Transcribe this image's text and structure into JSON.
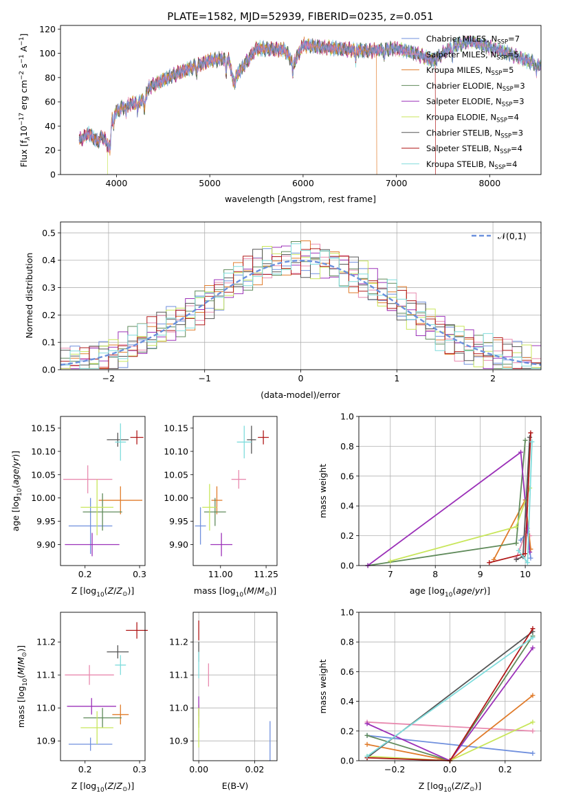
{
  "figure": {
    "title": "PLATE=1582, MJD=52939, FIBERID=0235, z=0.051"
  },
  "models": [
    {
      "name": "Chabrier MILES",
      "nssp": "7",
      "color": "#6f8fdd"
    },
    {
      "name": "Salpeter MILES",
      "nssp": "5",
      "color": "#e88aaf"
    },
    {
      "name": "Kroupa MILES",
      "nssp": "5",
      "color": "#e07b2a"
    },
    {
      "name": "Chabrier ELODIE",
      "nssp": "3",
      "color": "#5f8a5a"
    },
    {
      "name": "Salpeter ELODIE",
      "nssp": "3",
      "color": "#9b30b8"
    },
    {
      "name": "Kroupa ELODIE",
      "nssp": "4",
      "color": "#c8e65a"
    },
    {
      "name": "Chabrier STELIB",
      "nssp": "3",
      "color": "#555555"
    },
    {
      "name": "Salpeter STELIB",
      "nssp": "4",
      "color": "#b01818"
    },
    {
      "name": "Kroupa STELIB",
      "nssp": "4",
      "color": "#7fdcdc"
    }
  ],
  "chart_data": [
    {
      "id": "spectrum",
      "type": "line",
      "xlabel": "wavelength [Angstrom, rest frame]",
      "ylabel": "Flux [f_λ10^-17 erg cm^-2 s^-1 A^-1]",
      "xlim": [
        3400,
        8550
      ],
      "ylim": [
        0,
        123
      ],
      "xticks": [
        4000,
        5000,
        6000,
        7000,
        8000
      ],
      "yticks": [
        0,
        20,
        40,
        60,
        80,
        100,
        120
      ],
      "legend": "right",
      "grid": false,
      "continuum": {
        "x": [
          3600,
          3700,
          3800,
          3850,
          3920,
          3950,
          4000,
          4100,
          4200,
          4300,
          4350,
          4500,
          4700,
          5000,
          5200,
          5250,
          5500,
          5800,
          5900,
          6000,
          6200,
          6500,
          6700,
          7000,
          7200,
          7400,
          7600,
          7800,
          8000,
          8200,
          8400,
          8550
        ],
        "y": [
          28,
          34,
          27,
          32,
          22,
          45,
          52,
          57,
          59,
          62,
          72,
          78,
          85,
          94,
          96,
          78,
          104,
          103,
          92,
          107,
          105,
          103,
          102,
          104,
          100,
          94,
          106,
          110,
          105,
          100,
          94,
          90
        ]
      },
      "drops": [
        {
          "model": "Kroupa ELODIE",
          "x": 3905
        },
        {
          "model": "Kroupa MILES",
          "x": 6790
        },
        {
          "model": "Salpeter STELIB",
          "x": 7420
        }
      ]
    },
    {
      "id": "residuals",
      "type": "step",
      "xlabel": "(data-model)/error",
      "ylabel": "Normed distribution",
      "xlim": [
        -2.5,
        2.5
      ],
      "ylim": [
        0,
        0.54
      ],
      "xticks": [
        -2,
        -1,
        0,
        1,
        2
      ],
      "yticks": [
        0.0,
        0.1,
        0.2,
        0.3,
        0.4,
        0.5
      ],
      "grid": true,
      "legend": "top-right",
      "reference": {
        "name": "𝒩(0,1)",
        "mu": 0,
        "sigma": 1,
        "color": "#6a90dd"
      },
      "bins": 50
    },
    {
      "id": "age-vs-Z",
      "type": "errorbar",
      "xlabel": "Z [log10(Z/Z⊙)]",
      "ylabel": "age  [log10(age/yr)]",
      "xlim": [
        0.155,
        0.31
      ],
      "ylim": [
        9.855,
        10.175
      ],
      "xticks": [
        0.2,
        0.3
      ],
      "yticks": [
        9.9,
        9.95,
        10.0,
        10.05,
        10.1,
        10.15
      ],
      "points": [
        {
          "model": "Chabrier MILES",
          "x": 0.21,
          "y": 9.94,
          "xerr": 0.04,
          "yerr": 0.06
        },
        {
          "model": "Salpeter MILES",
          "x": 0.205,
          "y": 10.04,
          "xerr": 0.045,
          "yerr": 0.03
        },
        {
          "model": "Kroupa MILES",
          "x": 0.265,
          "y": 9.995,
          "xerr": 0.04,
          "yerr": 0.03
        },
        {
          "model": "Chabrier ELODIE",
          "x": 0.232,
          "y": 9.97,
          "xerr": 0.036,
          "yerr": 0.04
        },
        {
          "model": "Salpeter ELODIE",
          "x": 0.213,
          "y": 9.9,
          "xerr": 0.05,
          "yerr": 0.025
        },
        {
          "model": "Kroupa ELODIE",
          "x": 0.222,
          "y": 9.98,
          "xerr": 0.03,
          "yerr": 0.06
        },
        {
          "model": "Chabrier STELIB",
          "x": 0.26,
          "y": 10.125,
          "xerr": 0.02,
          "yerr": 0.015
        },
        {
          "model": "Salpeter STELIB",
          "x": 0.295,
          "y": 10.13,
          "xerr": 0.012,
          "yerr": 0.015
        },
        {
          "model": "Kroupa STELIB",
          "x": 0.265,
          "y": 10.12,
          "xerr": 0.01,
          "yerr": 0.04
        }
      ]
    },
    {
      "id": "age-vs-mass",
      "type": "errorbar",
      "xlabel": "mass [log10(M/M⊙)]",
      "ylabel": "",
      "xlim": [
        10.85,
        11.31
      ],
      "ylim": [
        9.855,
        10.175
      ],
      "xticks": [
        11.0,
        11.25
      ],
      "yticks": [
        9.9,
        9.95,
        10.0,
        10.05,
        10.1,
        10.15
      ],
      "points": [
        {
          "model": "Chabrier MILES",
          "x": 10.89,
          "y": 9.94,
          "xerr": 0.03,
          "yerr": 0.04
        },
        {
          "model": "Salpeter MILES",
          "x": 11.1,
          "y": 10.04,
          "xerr": 0.04,
          "yerr": 0.02
        },
        {
          "model": "Kroupa MILES",
          "x": 10.98,
          "y": 9.995,
          "xerr": 0.03,
          "yerr": 0.03
        },
        {
          "model": "Chabrier ELODIE",
          "x": 10.97,
          "y": 9.97,
          "xerr": 0.06,
          "yerr": 0.03
        },
        {
          "model": "Salpeter ELODIE",
          "x": 11.005,
          "y": 9.9,
          "xerr": 0.06,
          "yerr": 0.025
        },
        {
          "model": "Kroupa ELODIE",
          "x": 10.94,
          "y": 9.98,
          "xerr": 0.04,
          "yerr": 0.05
        },
        {
          "model": "Chabrier STELIB",
          "x": 11.17,
          "y": 10.125,
          "xerr": 0.025,
          "yerr": 0.03
        },
        {
          "model": "Salpeter STELIB",
          "x": 11.235,
          "y": 10.13,
          "xerr": 0.03,
          "yerr": 0.015
        },
        {
          "model": "Kroupa STELIB",
          "x": 11.13,
          "y": 10.12,
          "xerr": 0.04,
          "yerr": 0.035
        }
      ]
    },
    {
      "id": "weight-vs-age",
      "type": "line",
      "xlabel": "age  [log10(age/yr)]",
      "ylabel": "mass weight",
      "xlim": [
        6.3,
        10.35
      ],
      "ylim": [
        0.0,
        1.0
      ],
      "xticks": [
        7,
        8,
        9,
        10
      ],
      "yticks": [
        0.0,
        0.2,
        0.4,
        0.6,
        0.8,
        1.0
      ],
      "grid": true,
      "series": [
        {
          "model": "Chabrier MILES",
          "x": [
            9.9,
            10.05,
            10.12
          ],
          "y": [
            0.17,
            0.23,
            0.05
          ]
        },
        {
          "model": "Salpeter MILES",
          "x": [
            9.8,
            10.05,
            10.1
          ],
          "y": [
            0.05,
            0.25,
            0.2
          ]
        },
        {
          "model": "Kroupa MILES",
          "x": [
            9.3,
            10.0,
            10.12
          ],
          "y": [
            0.04,
            0.44,
            0.11
          ]
        },
        {
          "model": "Chabrier ELODIE",
          "x": [
            6.5,
            9.8,
            10.0
          ],
          "y": [
            0.0,
            0.15,
            0.84
          ]
        },
        {
          "model": "Salpeter ELODIE",
          "x": [
            6.5,
            9.9,
            10.1
          ],
          "y": [
            0.0,
            0.76,
            0.09
          ]
        },
        {
          "model": "Kroupa ELODIE",
          "x": [
            7.0,
            9.8,
            10.1
          ],
          "y": [
            0.03,
            0.26,
            0.52
          ]
        },
        {
          "model": "Chabrier STELIB",
          "x": [
            9.8,
            9.95,
            10.1
          ],
          "y": [
            0.04,
            0.06,
            0.86
          ]
        },
        {
          "model": "Salpeter STELIB",
          "x": [
            9.2,
            10.0,
            10.12
          ],
          "y": [
            0.02,
            0.08,
            0.89
          ]
        },
        {
          "model": "Kroupa STELIB",
          "x": [
            9.85,
            10.05,
            10.15
          ],
          "y": [
            0.1,
            0.02,
            0.83
          ]
        }
      ]
    },
    {
      "id": "mass-vs-Z",
      "type": "errorbar",
      "xlabel": "Z [log10(Z/Z⊙)]",
      "ylabel": "mass [log10(M/M⊙)]",
      "xlim": [
        0.155,
        0.31
      ],
      "ylim": [
        10.84,
        11.29
      ],
      "xticks": [
        0.2,
        0.3
      ],
      "yticks": [
        10.9,
        11.0,
        11.1,
        11.2
      ],
      "points": [
        {
          "model": "Chabrier MILES",
          "x": 0.21,
          "y": 10.89,
          "xerr": 0.04,
          "yerr": 0.02
        },
        {
          "model": "Salpeter MILES",
          "x": 0.208,
          "y": 11.1,
          "xerr": 0.045,
          "yerr": 0.03
        },
        {
          "model": "Kroupa MILES",
          "x": 0.265,
          "y": 10.98,
          "xerr": 0.015,
          "yerr": 0.03
        },
        {
          "model": "Chabrier ELODIE",
          "x": 0.232,
          "y": 10.97,
          "xerr": 0.035,
          "yerr": 0.03
        },
        {
          "model": "Salpeter ELODIE",
          "x": 0.212,
          "y": 11.005,
          "xerr": 0.045,
          "yerr": 0.025
        },
        {
          "model": "Kroupa ELODIE",
          "x": 0.222,
          "y": 10.94,
          "xerr": 0.03,
          "yerr": 0.05
        },
        {
          "model": "Chabrier STELIB",
          "x": 0.26,
          "y": 11.17,
          "xerr": 0.02,
          "yerr": 0.02
        },
        {
          "model": "Salpeter STELIB",
          "x": 0.295,
          "y": 11.235,
          "xerr": 0.02,
          "yerr": 0.025
        },
        {
          "model": "Kroupa STELIB",
          "x": 0.265,
          "y": 11.13,
          "xerr": 0.01,
          "yerr": 0.03
        }
      ]
    },
    {
      "id": "mass-vs-ebv",
      "type": "errorbar",
      "xlabel": "E(B-V)",
      "ylabel": "",
      "xlim": [
        -0.002,
        0.028
      ],
      "ylim": [
        10.84,
        11.29
      ],
      "xticks": [
        0.0,
        0.02
      ],
      "yticks": [
        10.9,
        11.0,
        11.1,
        11.2
      ],
      "grid": true,
      "points": [
        {
          "model": "Chabrier MILES",
          "x": 0.0255,
          "y": 10.9,
          "xerr": 0,
          "yerr": 0.06
        },
        {
          "model": "Salpeter MILES",
          "x": 0.0035,
          "y": 11.1,
          "xerr": 0,
          "yerr": 0.035
        },
        {
          "model": "Kroupa MILES",
          "x": 0.0,
          "y": 10.98,
          "xerr": 0,
          "yerr": 0.03
        },
        {
          "model": "Chabrier ELODIE",
          "x": 0.0,
          "y": 10.97,
          "xerr": 0,
          "yerr": 0.03
        },
        {
          "model": "Salpeter ELODIE",
          "x": 0.0,
          "y": 11.005,
          "xerr": 0,
          "yerr": 0.03
        },
        {
          "model": "Kroupa ELODIE",
          "x": 0.0,
          "y": 10.94,
          "xerr": 0,
          "yerr": 0.06
        },
        {
          "model": "Chabrier STELIB",
          "x": 0.0,
          "y": 11.17,
          "xerr": 0,
          "yerr": 0.03
        },
        {
          "model": "Salpeter STELIB",
          "x": 0.0,
          "y": 11.235,
          "xerr": 0,
          "yerr": 0.03
        },
        {
          "model": "Kroupa STELIB",
          "x": 0.0,
          "y": 11.13,
          "xerr": 0,
          "yerr": 0.04
        }
      ]
    },
    {
      "id": "weight-vs-Z",
      "type": "line",
      "xlabel": "Z [log10(Z/Z⊙)]",
      "ylabel": "mass weight",
      "xlim": [
        -0.33,
        0.33
      ],
      "ylim": [
        0.0,
        1.0
      ],
      "xticks": [
        -0.2,
        0.0,
        0.2
      ],
      "yticks": [
        0.0,
        0.2,
        0.4,
        0.6,
        0.8,
        1.0
      ],
      "grid": true,
      "series": [
        {
          "model": "Chabrier MILES",
          "x": [
            -0.3,
            0.3
          ],
          "y": [
            0.17,
            0.05
          ]
        },
        {
          "model": "Salpeter MILES",
          "x": [
            -0.3,
            0.3
          ],
          "y": [
            0.26,
            0.2
          ]
        },
        {
          "model": "Kroupa MILES",
          "x": [
            -0.3,
            0.0,
            0.3
          ],
          "y": [
            0.11,
            0.0,
            0.44
          ]
        },
        {
          "model": "Chabrier ELODIE",
          "x": [
            -0.3,
            0.0,
            0.3
          ],
          "y": [
            0.17,
            0.0,
            0.84
          ]
        },
        {
          "model": "Salpeter ELODIE",
          "x": [
            -0.3,
            0.0,
            0.3
          ],
          "y": [
            0.25,
            0.0,
            0.76
          ]
        },
        {
          "model": "Kroupa ELODIE",
          "x": [
            -0.3,
            0.0,
            0.3
          ],
          "y": [
            0.03,
            0.0,
            0.26
          ]
        },
        {
          "model": "Chabrier STELIB",
          "x": [
            -0.3,
            0.3
          ],
          "y": [
            0.02,
            0.87
          ]
        },
        {
          "model": "Salpeter STELIB",
          "x": [
            -0.3,
            0.0,
            0.3
          ],
          "y": [
            0.02,
            0.0,
            0.89
          ]
        },
        {
          "model": "Kroupa STELIB",
          "x": [
            -0.3,
            0.3
          ],
          "y": [
            0.03,
            0.83
          ]
        }
      ]
    }
  ]
}
